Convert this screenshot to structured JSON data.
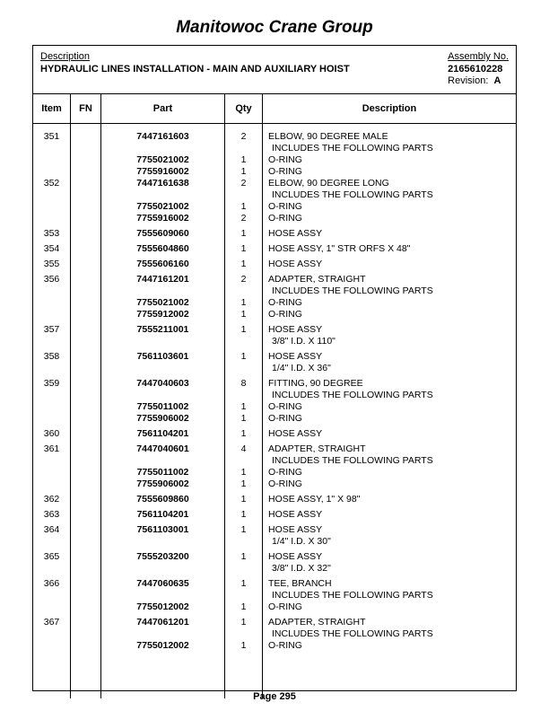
{
  "company": "Manitowoc Crane Group",
  "header": {
    "desc_label": "Description",
    "desc_value": "HYDRAULIC LINES INSTALLATION - MAIN AND AUXILIARY HOIST",
    "asm_label": "Assembly No.",
    "asm_value": "2165610228",
    "rev_label": "Revision:",
    "rev_value": "A"
  },
  "columns": {
    "item": "Item",
    "fn": "FN",
    "part": "Part",
    "qty": "Qty",
    "desc": "Description"
  },
  "rows": [
    {
      "type": "main",
      "item": "351",
      "part": "7447161603",
      "qty": "2",
      "desc": "ELBOW, 90 DEGREE MALE"
    },
    {
      "type": "sub",
      "desc": "INCLUDES THE FOLLOWING PARTS"
    },
    {
      "type": "child",
      "part": "7755021002",
      "qty": "1",
      "desc": "O-RING"
    },
    {
      "type": "child",
      "part": "7755916002",
      "qty": "1",
      "desc": "O-RING"
    },
    {
      "type": "main",
      "item": "352",
      "part": "7447161638",
      "qty": "2",
      "desc": "ELBOW, 90 DEGREE LONG"
    },
    {
      "type": "sub",
      "desc": "INCLUDES THE FOLLOWING PARTS"
    },
    {
      "type": "child",
      "part": "7755021002",
      "qty": "1",
      "desc": "O-RING"
    },
    {
      "type": "child",
      "part": "7755916002",
      "qty": "2",
      "desc": "O-RING"
    },
    {
      "type": "gap"
    },
    {
      "type": "main",
      "item": "353",
      "part": "7555609060",
      "qty": "1",
      "desc": "HOSE ASSY"
    },
    {
      "type": "gap"
    },
    {
      "type": "main",
      "item": "354",
      "part": "7555604860",
      "qty": "1",
      "desc": "HOSE ASSY, 1\" STR ORFS X 48\""
    },
    {
      "type": "gap"
    },
    {
      "type": "main",
      "item": "355",
      "part": "7555606160",
      "qty": "1",
      "desc": "HOSE ASSY"
    },
    {
      "type": "gap"
    },
    {
      "type": "main",
      "item": "356",
      "part": "7447161201",
      "qty": "2",
      "desc": "ADAPTER, STRAIGHT"
    },
    {
      "type": "sub",
      "desc": "INCLUDES THE FOLLOWING PARTS"
    },
    {
      "type": "child",
      "part": "7755021002",
      "qty": "1",
      "desc": "O-RING"
    },
    {
      "type": "child",
      "part": "7755912002",
      "qty": "1",
      "desc": "O-RING"
    },
    {
      "type": "gap"
    },
    {
      "type": "main",
      "item": "357",
      "part": "7555211001",
      "qty": "1",
      "desc": "HOSE ASSY"
    },
    {
      "type": "sub",
      "desc": "3/8\" I.D. X 110\""
    },
    {
      "type": "gap"
    },
    {
      "type": "main",
      "item": "358",
      "part": "7561103601",
      "qty": "1",
      "desc": "HOSE ASSY"
    },
    {
      "type": "sub",
      "desc": "1/4\" I.D. X 36\""
    },
    {
      "type": "gap"
    },
    {
      "type": "main",
      "item": "359",
      "part": "7447040603",
      "qty": "8",
      "desc": "FITTING, 90 DEGREE"
    },
    {
      "type": "sub",
      "desc": "INCLUDES THE FOLLOWING PARTS"
    },
    {
      "type": "child",
      "part": "7755011002",
      "qty": "1",
      "desc": "O-RING"
    },
    {
      "type": "child",
      "part": "7755906002",
      "qty": "1",
      "desc": "O-RING"
    },
    {
      "type": "gap"
    },
    {
      "type": "main",
      "item": "360",
      "part": "7561104201",
      "qty": "1",
      "desc": "HOSE ASSY"
    },
    {
      "type": "gap"
    },
    {
      "type": "main",
      "item": "361",
      "part": "7447040601",
      "qty": "4",
      "desc": "ADAPTER, STRAIGHT"
    },
    {
      "type": "sub",
      "desc": "INCLUDES THE FOLLOWING PARTS"
    },
    {
      "type": "child",
      "part": "7755011002",
      "qty": "1",
      "desc": "O-RING"
    },
    {
      "type": "child",
      "part": "7755906002",
      "qty": "1",
      "desc": "O-RING"
    },
    {
      "type": "gap"
    },
    {
      "type": "main",
      "item": "362",
      "part": "7555609860",
      "qty": "1",
      "desc": "HOSE ASSY, 1\" X 98\""
    },
    {
      "type": "gap"
    },
    {
      "type": "main",
      "item": "363",
      "part": "7561104201",
      "qty": "1",
      "desc": "HOSE ASSY"
    },
    {
      "type": "gap"
    },
    {
      "type": "main",
      "item": "364",
      "part": "7561103001",
      "qty": "1",
      "desc": "HOSE ASSY"
    },
    {
      "type": "sub",
      "desc": "1/4\" I.D. X 30\""
    },
    {
      "type": "gap"
    },
    {
      "type": "main",
      "item": "365",
      "part": "7555203200",
      "qty": "1",
      "desc": "HOSE ASSY"
    },
    {
      "type": "sub",
      "desc": "3/8\" I.D. X 32\""
    },
    {
      "type": "gap"
    },
    {
      "type": "main",
      "item": "366",
      "part": "7447060635",
      "qty": "1",
      "desc": "TEE, BRANCH"
    },
    {
      "type": "sub",
      "desc": "INCLUDES THE FOLLOWING PARTS"
    },
    {
      "type": "child",
      "part": "7755012002",
      "qty": "1",
      "desc": "O-RING"
    },
    {
      "type": "gap"
    },
    {
      "type": "main",
      "item": "367",
      "part": "7447061201",
      "qty": "1",
      "desc": "ADAPTER, STRAIGHT"
    },
    {
      "type": "sub",
      "desc": "INCLUDES THE FOLLOWING PARTS"
    },
    {
      "type": "child",
      "part": "7755012002",
      "qty": "1",
      "desc": "O-RING"
    }
  ],
  "footer": "Page 295"
}
